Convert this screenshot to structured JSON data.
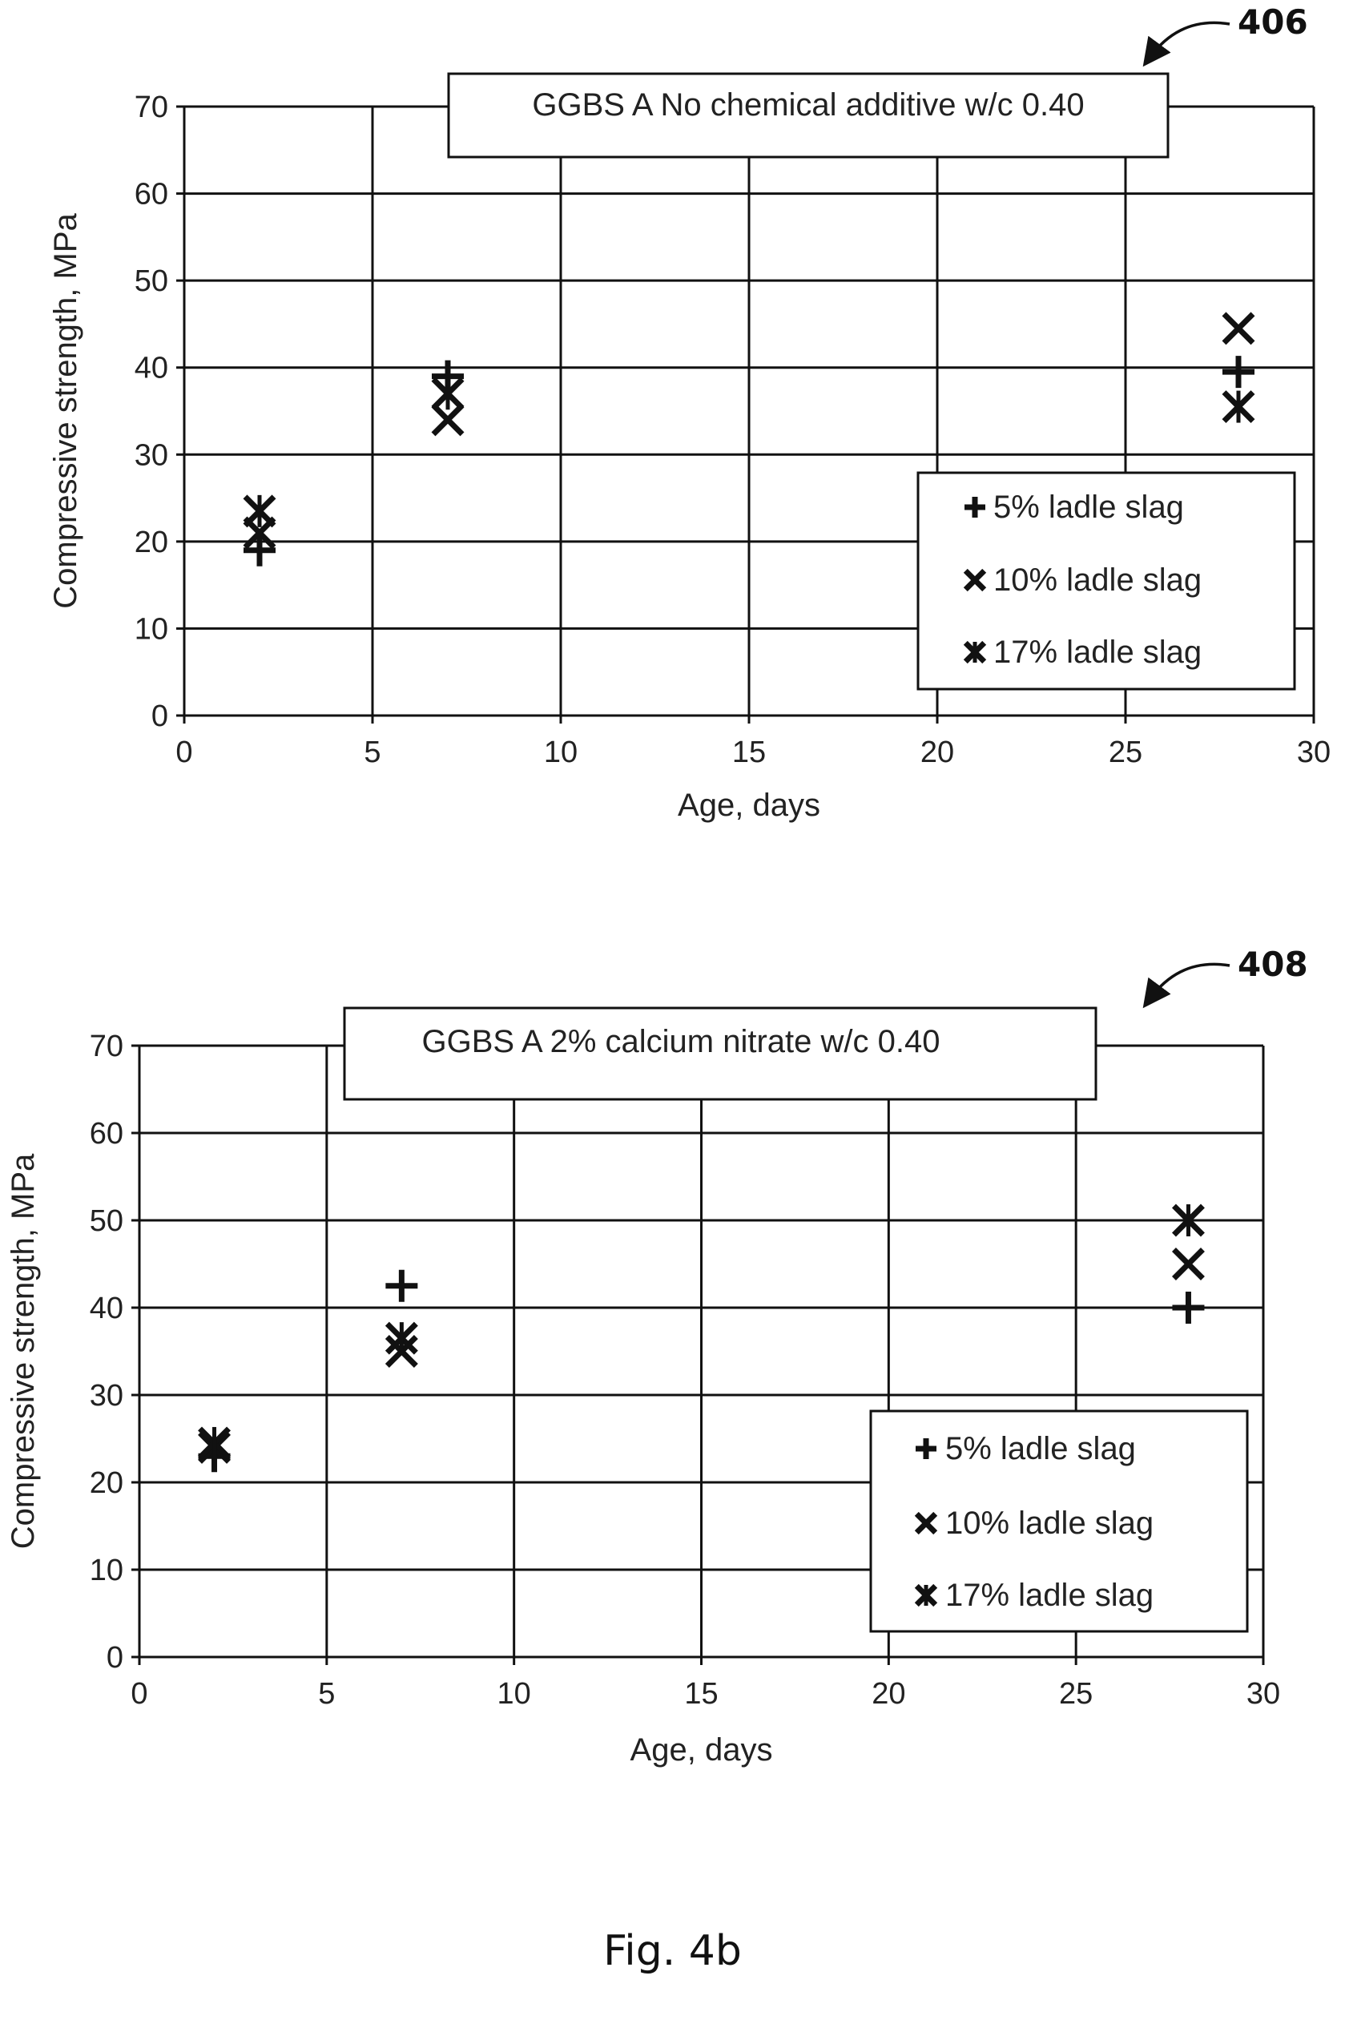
{
  "figure": {
    "caption": "Fig. 4b"
  },
  "chart_data": [
    {
      "type": "scatter",
      "ref_label": "406",
      "title": "GGBS A No chemical additive w/c 0.40",
      "xlabel": "Age, days",
      "ylabel": "Compressive strength, MPa",
      "xlim": [
        0,
        30
      ],
      "ylim": [
        0,
        70
      ],
      "xticks": [
        0,
        5,
        10,
        15,
        20,
        25,
        30
      ],
      "yticks": [
        0,
        10,
        20,
        30,
        40,
        50,
        60,
        70
      ],
      "grid": true,
      "legend_position": "bottom-right",
      "series": [
        {
          "name": "5% ladle slag",
          "marker": "plus",
          "x": [
            2,
            7,
            28
          ],
          "y": [
            19,
            39,
            39.5
          ]
        },
        {
          "name": "10% ladle slag",
          "marker": "cross",
          "x": [
            2,
            7,
            28
          ],
          "y": [
            21,
            34,
            44.5
          ]
        },
        {
          "name": "17% ladle slag",
          "marker": "star",
          "x": [
            2,
            7,
            28
          ],
          "y": [
            23.5,
            37,
            35.5
          ]
        }
      ]
    },
    {
      "type": "scatter",
      "ref_label": "408",
      "title": "GGBS A 2% calcium nitrate w/c 0.40",
      "xlabel": "Age, days",
      "ylabel": "Compressive strength, MPa",
      "xlim": [
        0,
        30
      ],
      "ylim": [
        0,
        70
      ],
      "xticks": [
        0,
        5,
        10,
        15,
        20,
        25,
        30
      ],
      "yticks": [
        0,
        10,
        20,
        30,
        40,
        50,
        60,
        70
      ],
      "grid": true,
      "legend_position": "bottom-right",
      "series": [
        {
          "name": "5% ladle slag",
          "marker": "plus",
          "x": [
            2,
            7,
            28
          ],
          "y": [
            23,
            42.5,
            40
          ]
        },
        {
          "name": "10% ladle slag",
          "marker": "cross",
          "x": [
            2,
            7,
            28
          ],
          "y": [
            24,
            35,
            45
          ]
        },
        {
          "name": "17% ladle slag",
          "marker": "star",
          "x": [
            2,
            7,
            28
          ],
          "y": [
            24.5,
            36.5,
            50
          ]
        }
      ]
    }
  ]
}
